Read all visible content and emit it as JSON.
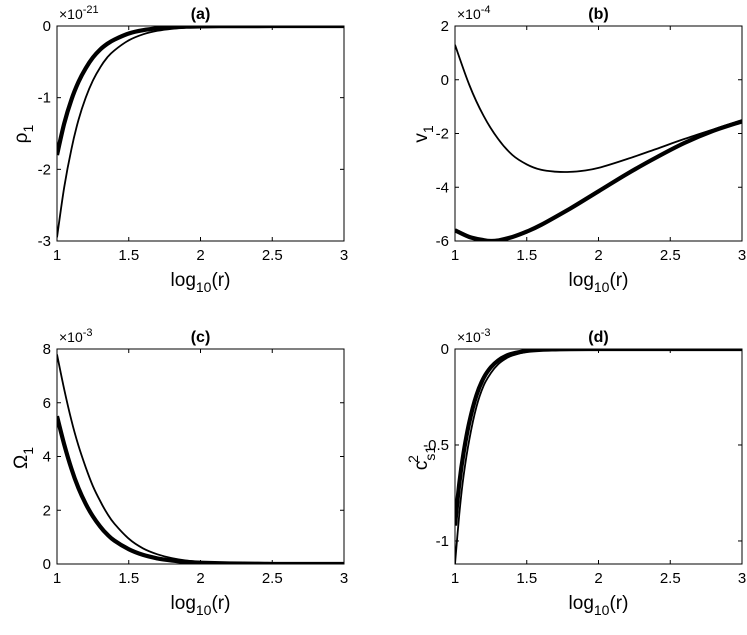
{
  "chart_data": [
    {
      "type": "line",
      "title": "(a)",
      "xlabel": "log10(r)",
      "ylabel": "ρ1",
      "y_multiplier": "×10^-21",
      "xlim": [
        1,
        3
      ],
      "ylim": [
        -3,
        0
      ],
      "xticks": [
        1,
        1.5,
        2,
        2.5,
        3
      ],
      "xtick_labels": [
        "1",
        "1.5",
        "2",
        "2.5",
        "3"
      ],
      "yticks": [
        -3,
        -2,
        -1,
        0
      ],
      "ytick_labels": [
        "-3",
        "-2",
        "-1",
        "0"
      ],
      "series": [
        {
          "style": "thick",
          "x": [
            1.0,
            1.05,
            1.1,
            1.15,
            1.2,
            1.25,
            1.3,
            1.35,
            1.4,
            1.5,
            1.6,
            1.7,
            1.8,
            1.9,
            2.0,
            2.2,
            2.4,
            2.6,
            2.8,
            3.0
          ],
          "y": [
            -1.8,
            -1.36,
            -1.03,
            -0.78,
            -0.59,
            -0.44,
            -0.33,
            -0.25,
            -0.19,
            -0.105,
            -0.058,
            -0.032,
            -0.018,
            -0.01,
            -0.005,
            -0.002,
            -0.001,
            0,
            0,
            0
          ]
        },
        {
          "style": "thin",
          "x": [
            1.0,
            1.05,
            1.1,
            1.15,
            1.2,
            1.25,
            1.3,
            1.35,
            1.4,
            1.5,
            1.6,
            1.7,
            1.8,
            1.9,
            2.0,
            2.2,
            2.4,
            2.6,
            2.8,
            3.0
          ],
          "y": [
            -2.95,
            -2.25,
            -1.72,
            -1.31,
            -1.0,
            -0.76,
            -0.58,
            -0.44,
            -0.34,
            -0.2,
            -0.116,
            -0.067,
            -0.039,
            -0.022,
            -0.013,
            -0.004,
            -0.001,
            0,
            0,
            0
          ]
        }
      ]
    },
    {
      "type": "line",
      "title": "(b)",
      "xlabel": "log10(r)",
      "ylabel": "v1",
      "y_multiplier": "×10^-4",
      "xlim": [
        1,
        3
      ],
      "ylim": [
        -6,
        2
      ],
      "xticks": [
        1,
        1.5,
        2,
        2.5,
        3
      ],
      "xtick_labels": [
        "1",
        "1.5",
        "2",
        "2.5",
        "3"
      ],
      "yticks": [
        -6,
        -4,
        -2,
        0,
        2
      ],
      "ytick_labels": [
        "-6",
        "-4",
        "-2",
        "0",
        "2"
      ],
      "series": [
        {
          "style": "thin",
          "x": [
            1.0,
            1.1,
            1.2,
            1.3,
            1.4,
            1.5,
            1.6,
            1.7,
            1.8,
            1.9,
            2.0,
            2.2,
            2.4,
            2.6,
            2.8,
            3.0
          ],
          "y": [
            1.3,
            -0.2,
            -1.35,
            -2.2,
            -2.8,
            -3.15,
            -3.35,
            -3.42,
            -3.43,
            -3.38,
            -3.28,
            -2.95,
            -2.58,
            -2.2,
            -1.85,
            -1.5
          ]
        },
        {
          "style": "thick",
          "x": [
            1.0,
            1.1,
            1.2,
            1.25,
            1.3,
            1.4,
            1.5,
            1.6,
            1.8,
            2.0,
            2.2,
            2.4,
            2.6,
            2.8,
            3.0
          ],
          "y": [
            -5.6,
            -5.85,
            -5.97,
            -6.0,
            -5.98,
            -5.85,
            -5.65,
            -5.4,
            -4.8,
            -4.15,
            -3.5,
            -2.9,
            -2.35,
            -1.9,
            -1.55
          ]
        }
      ]
    },
    {
      "type": "line",
      "title": "(c)",
      "xlabel": "log10(r)",
      "ylabel": "Ω1",
      "y_multiplier": "×10^-3",
      "xlim": [
        1,
        3
      ],
      "ylim": [
        0,
        8
      ],
      "xticks": [
        1,
        1.5,
        2,
        2.5,
        3
      ],
      "xtick_labels": [
        "1",
        "1.5",
        "2",
        "2.5",
        "3"
      ],
      "yticks": [
        0,
        2,
        4,
        6,
        8
      ],
      "ytick_labels": [
        "0",
        "2",
        "4",
        "6",
        "8"
      ],
      "series": [
        {
          "style": "thick",
          "x": [
            1.0,
            1.05,
            1.1,
            1.15,
            1.2,
            1.25,
            1.3,
            1.35,
            1.4,
            1.5,
            1.6,
            1.7,
            1.8,
            1.9,
            2.0,
            2.2,
            2.4,
            2.6,
            2.8,
            3.0
          ],
          "y": [
            5.5,
            4.45,
            3.55,
            2.82,
            2.24,
            1.77,
            1.4,
            1.1,
            0.87,
            0.55,
            0.34,
            0.21,
            0.13,
            0.08,
            0.05,
            0.02,
            0.01,
            0,
            0,
            0
          ]
        },
        {
          "style": "thin",
          "x": [
            1.0,
            1.05,
            1.1,
            1.15,
            1.2,
            1.25,
            1.3,
            1.35,
            1.4,
            1.5,
            1.6,
            1.7,
            1.8,
            1.9,
            2.0,
            2.2,
            2.4,
            2.6,
            2.8,
            3.0
          ],
          "y": [
            7.8,
            6.5,
            5.35,
            4.4,
            3.6,
            2.9,
            2.35,
            1.88,
            1.5,
            0.94,
            0.58,
            0.36,
            0.22,
            0.13,
            0.08,
            0.03,
            0.01,
            0,
            0,
            0
          ]
        }
      ]
    },
    {
      "type": "line",
      "title": "(d)",
      "xlabel": "log10(r)",
      "ylabel": "c_s1^2",
      "y_multiplier": "×10^-3",
      "xlim": [
        1,
        3
      ],
      "ylim": [
        -1.12,
        0
      ],
      "xticks": [
        1,
        1.5,
        2,
        2.5,
        3
      ],
      "xtick_labels": [
        "1",
        "1.5",
        "2",
        "2.5",
        "3"
      ],
      "yticks": [
        -1,
        -0.5,
        0
      ],
      "ytick_labels": [
        "-1",
        "-0.5",
        "0"
      ],
      "series": [
        {
          "style": "thick",
          "x": [
            1.0,
            1.03,
            1.06,
            1.1,
            1.15,
            1.2,
            1.25,
            1.3,
            1.35,
            1.4,
            1.5,
            1.6,
            1.7,
            1.8,
            2.0,
            2.2,
            2.5,
            3.0
          ],
          "y": [
            -0.92,
            -0.7,
            -0.54,
            -0.38,
            -0.24,
            -0.15,
            -0.095,
            -0.06,
            -0.038,
            -0.024,
            -0.01,
            -0.004,
            -0.002,
            -0.001,
            0,
            0,
            0,
            0
          ]
        },
        {
          "style": "thin",
          "x": [
            1.0,
            1.03,
            1.06,
            1.1,
            1.15,
            1.2,
            1.25,
            1.3,
            1.35,
            1.4,
            1.5,
            1.6,
            1.7,
            1.8,
            2.0,
            2.2,
            2.5,
            3.0
          ],
          "y": [
            -1.12,
            -0.86,
            -0.66,
            -0.47,
            -0.3,
            -0.19,
            -0.125,
            -0.08,
            -0.052,
            -0.034,
            -0.014,
            -0.006,
            -0.003,
            -0.001,
            0,
            0,
            0,
            0
          ]
        }
      ]
    }
  ]
}
